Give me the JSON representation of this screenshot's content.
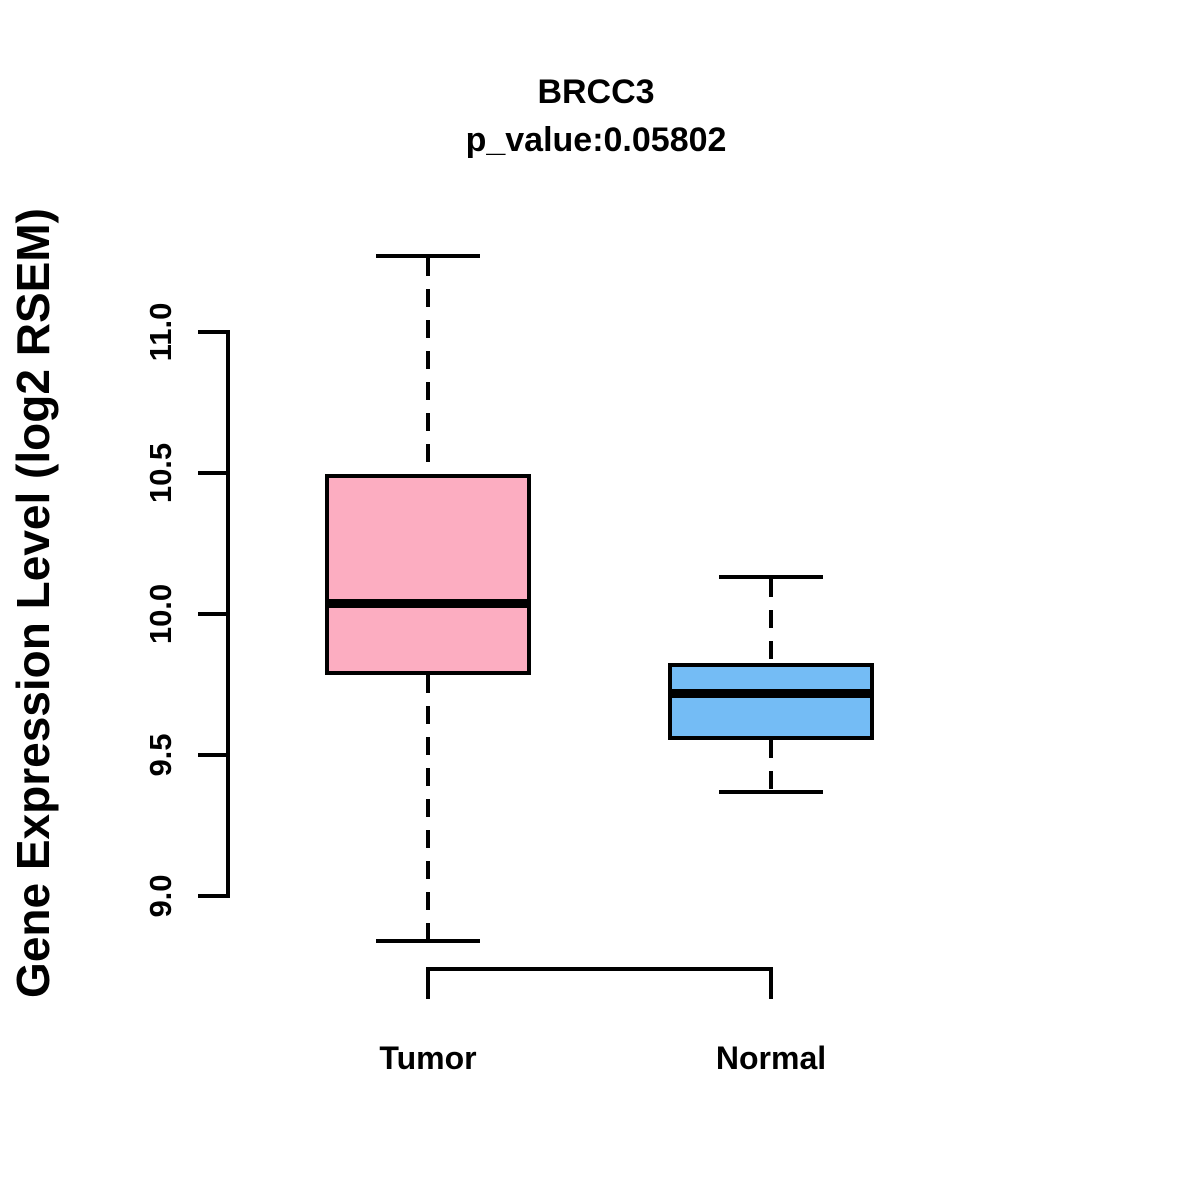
{
  "title": {
    "line1": "BRCC3",
    "line2": "p_value:0.05802"
  },
  "axes": {
    "y_label": "Gene Expression Level (log2 RSEM)",
    "y_ticks": [
      {
        "label": "9.0",
        "value": 9.0
      },
      {
        "label": "9.5",
        "value": 9.5
      },
      {
        "label": "10.0",
        "value": 10.0
      },
      {
        "label": "10.5",
        "value": 10.5
      },
      {
        "label": "11.0",
        "value": 11.0
      }
    ],
    "x_categories": [
      "Tumor",
      "Normal"
    ]
  },
  "chart_data": {
    "type": "boxplot",
    "title": "BRCC3",
    "subtitle": "p_value:0.05802",
    "gene": "BRCC3",
    "p_value": 0.05802,
    "ylabel": "Gene Expression Level (log2 RSEM)",
    "ylim": [
      8.7,
      11.35
    ],
    "yticks": [
      9.0,
      9.5,
      10.0,
      10.5,
      11.0
    ],
    "grid": false,
    "legend": "none",
    "groups": [
      {
        "name": "Tumor",
        "color": "#fcadc1",
        "whisker_low": 8.84,
        "q1": 9.79,
        "median": 10.04,
        "q3": 10.49,
        "whisker_high": 11.27
      },
      {
        "name": "Normal",
        "color": "#74bcf5",
        "whisker_low": 9.37,
        "q1": 9.56,
        "median": 9.72,
        "q3": 9.82,
        "whisker_high": 10.13
      }
    ]
  },
  "colors": {
    "tumor_box": "#fcadc1",
    "normal_box": "#74bcf5",
    "line": "#000000",
    "background": "#ffffff"
  }
}
